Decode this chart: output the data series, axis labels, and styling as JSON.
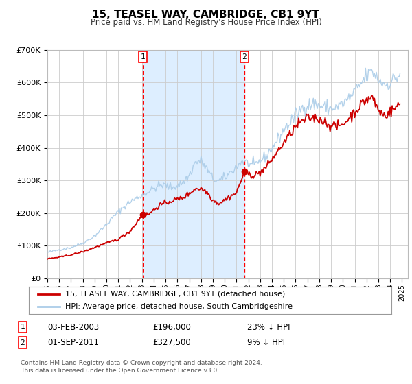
{
  "title": "15, TEASEL WAY, CAMBRIDGE, CB1 9YT",
  "subtitle": "Price paid vs. HM Land Registry's House Price Index (HPI)",
  "legend_line1": "15, TEASEL WAY, CAMBRIDGE, CB1 9YT (detached house)",
  "legend_line2": "HPI: Average price, detached house, South Cambridgeshire",
  "footnote1": "Contains HM Land Registry data © Crown copyright and database right 2024.",
  "footnote2": "This data is licensed under the Open Government Licence v3.0.",
  "sale1_date_str": "03-FEB-2003",
  "sale1_price_str": "£196,000",
  "sale1_hpi_str": "23% ↓ HPI",
  "sale2_date_str": "01-SEP-2011",
  "sale2_price_str": "£327,500",
  "sale2_hpi_str": "9% ↓ HPI",
  "sale1_x": 2003.09,
  "sale1_y": 196000,
  "sale2_x": 2011.67,
  "sale2_y": 327500,
  "hpi_color": "#aacce8",
  "price_color": "#cc0000",
  "shade_color": "#ddeeff",
  "background_color": "#ffffff",
  "grid_color": "#cccccc",
  "ylim": [
    0,
    700000
  ],
  "yticks": [
    0,
    100000,
    200000,
    300000,
    400000,
    500000,
    600000,
    700000
  ],
  "ytick_labels": [
    "£0",
    "£100K",
    "£200K",
    "£300K",
    "£400K",
    "£500K",
    "£600K",
    "£700K"
  ],
  "xmin": 1995.0,
  "xmax": 2025.5,
  "hpi_anchors": {
    "1995.0": 80000,
    "1996.0": 88000,
    "1997.0": 95000,
    "1998.0": 108000,
    "1999.0": 130000,
    "2000.0": 165000,
    "2001.0": 205000,
    "2002.0": 235000,
    "2003.0": 255000,
    "2003.5": 265000,
    "2004.0": 275000,
    "2004.5": 285000,
    "2005.0": 285000,
    "2005.5": 278000,
    "2006.0": 285000,
    "2006.5": 295000,
    "2007.0": 315000,
    "2007.5": 355000,
    "2008.0": 360000,
    "2008.5": 335000,
    "2009.0": 305000,
    "2009.5": 298000,
    "2010.0": 308000,
    "2010.5": 325000,
    "2011.0": 342000,
    "2011.5": 360000,
    "2012.0": 352000,
    "2012.5": 345000,
    "2013.0": 360000,
    "2013.5": 375000,
    "2014.0": 400000,
    "2014.5": 425000,
    "2015.0": 455000,
    "2015.5": 475000,
    "2016.0": 500000,
    "2016.5": 520000,
    "2017.0": 530000,
    "2017.5": 535000,
    "2018.0": 530000,
    "2018.5": 525000,
    "2019.0": 520000,
    "2019.5": 525000,
    "2020.0": 535000,
    "2020.5": 550000,
    "2021.0": 570000,
    "2021.5": 595000,
    "2022.0": 620000,
    "2022.5": 635000,
    "2023.0": 610000,
    "2023.5": 595000,
    "2024.0": 600000,
    "2024.5": 615000,
    "2024.9": 625000
  },
  "price_anchors": {
    "1995.0": 60000,
    "1996.0": 65000,
    "1997.0": 72000,
    "1998.0": 82000,
    "1999.0": 95000,
    "2000.0": 108000,
    "2001.0": 120000,
    "2002.0": 145000,
    "2003.09": 196000,
    "2003.5": 195000,
    "2004.0": 210000,
    "2004.5": 225000,
    "2005.0": 230000,
    "2005.5": 238000,
    "2006.0": 242000,
    "2006.5": 248000,
    "2007.0": 260000,
    "2007.5": 275000,
    "2008.0": 275000,
    "2008.5": 265000,
    "2009.0": 240000,
    "2009.5": 230000,
    "2010.0": 240000,
    "2010.5": 252000,
    "2011.0": 262000,
    "2011.67": 327500,
    "2012.0": 320000,
    "2012.5": 315000,
    "2013.0": 325000,
    "2013.5": 340000,
    "2014.0": 365000,
    "2014.5": 390000,
    "2015.0": 415000,
    "2015.5": 440000,
    "2016.0": 465000,
    "2016.5": 480000,
    "2017.0": 490000,
    "2017.5": 492000,
    "2018.0": 488000,
    "2018.5": 480000,
    "2019.0": 468000,
    "2019.5": 465000,
    "2020.0": 472000,
    "2020.5": 490000,
    "2021.0": 510000,
    "2021.5": 530000,
    "2022.0": 548000,
    "2022.5": 555000,
    "2023.0": 515000,
    "2023.5": 500000,
    "2024.0": 510000,
    "2024.5": 525000,
    "2024.9": 535000
  }
}
